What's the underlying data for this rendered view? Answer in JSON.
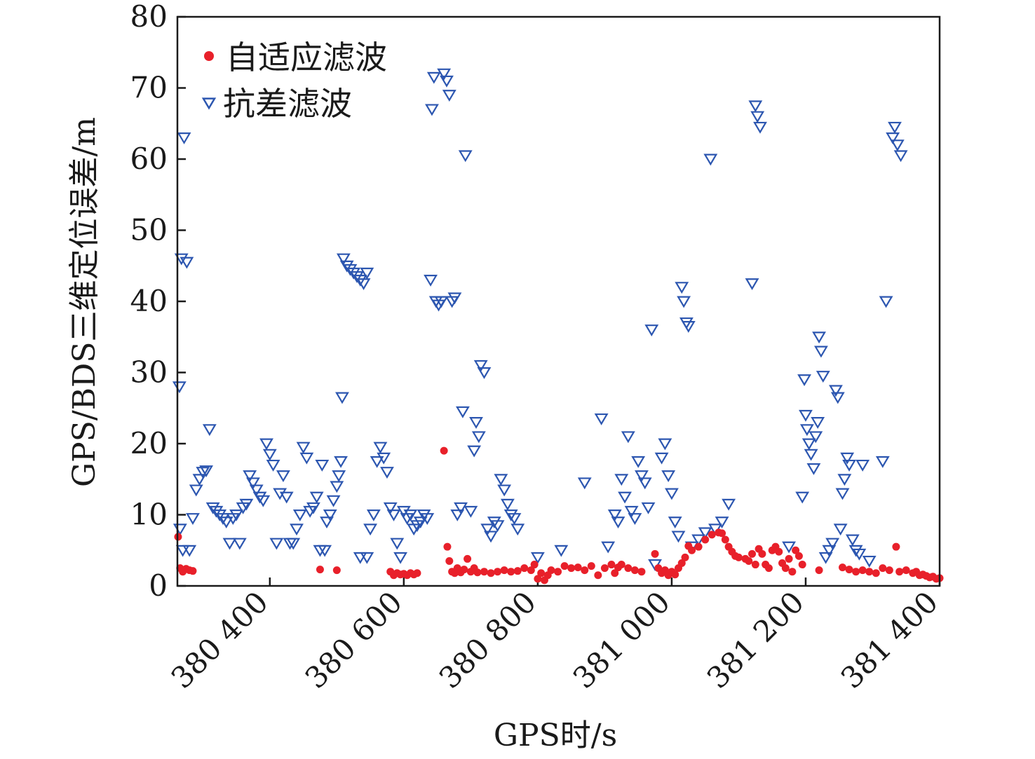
{
  "chart_data": {
    "type": "scatter",
    "title": "",
    "xlabel": "GPS时/s",
    "ylabel": "GPS/BDS三维定位误差/m",
    "xlim": [
      380262,
      381400
    ],
    "ylim": [
      0,
      80
    ],
    "x_ticks": [
      380400,
      380600,
      380800,
      381000,
      381200,
      381400
    ],
    "x_tick_labels": [
      "380 400",
      "380 600",
      "380 800",
      "381 000",
      "381 200",
      "381 400"
    ],
    "y_ticks": [
      0,
      10,
      20,
      30,
      40,
      50,
      60,
      70,
      80
    ],
    "y_tick_labels": [
      "0",
      "10",
      "20",
      "30",
      "40",
      "50",
      "60",
      "70",
      "80"
    ],
    "grid": false,
    "legend_position": "top-left",
    "colors": {
      "adaptive": "#e8202a",
      "robust": "#2c56b0",
      "axis": "#1a1a1a"
    },
    "series": [
      {
        "name": "自适应滤波",
        "marker": "circle",
        "color": "#e8202a",
        "points": [
          [
            380263,
            6.9
          ],
          [
            380266,
            2.5
          ],
          [
            380270,
            2.0
          ],
          [
            380275,
            2.4
          ],
          [
            380280,
            2.2
          ],
          [
            380285,
            2.1
          ],
          [
            380475,
            2.3
          ],
          [
            380500,
            2.2
          ],
          [
            380580,
            2.0
          ],
          [
            380585,
            1.5
          ],
          [
            380590,
            1.8
          ],
          [
            380595,
            1.6
          ],
          [
            380600,
            1.7
          ],
          [
            380605,
            1.5
          ],
          [
            380610,
            1.8
          ],
          [
            380615,
            1.6
          ],
          [
            380620,
            1.8
          ],
          [
            380660,
            19.0
          ],
          [
            380665,
            5.5
          ],
          [
            380668,
            3.5
          ],
          [
            380672,
            2.0
          ],
          [
            380676,
            1.8
          ],
          [
            380680,
            2.5
          ],
          [
            380685,
            1.9
          ],
          [
            380690,
            2.3
          ],
          [
            380695,
            3.8
          ],
          [
            380700,
            2.0
          ],
          [
            380705,
            2.5
          ],
          [
            380710,
            1.9
          ],
          [
            380720,
            2.0
          ],
          [
            380730,
            1.8
          ],
          [
            380740,
            2.0
          ],
          [
            380750,
            2.2
          ],
          [
            380760,
            2.0
          ],
          [
            380770,
            2.1
          ],
          [
            380780,
            2.5
          ],
          [
            380790,
            2.2
          ],
          [
            380795,
            3.0
          ],
          [
            380800,
            1.0
          ],
          [
            380805,
            1.8
          ],
          [
            380810,
            0.8
          ],
          [
            380815,
            1.5
          ],
          [
            380820,
            2.2
          ],
          [
            380830,
            2.0
          ],
          [
            380840,
            2.8
          ],
          [
            380850,
            2.5
          ],
          [
            380860,
            2.6
          ],
          [
            380870,
            2.2
          ],
          [
            380880,
            2.8
          ],
          [
            380890,
            1.5
          ],
          [
            380900,
            2.5
          ],
          [
            380910,
            3.0
          ],
          [
            380915,
            1.8
          ],
          [
            380920,
            2.6
          ],
          [
            380925,
            3.0
          ],
          [
            380935,
            2.5
          ],
          [
            380945,
            2.2
          ],
          [
            380955,
            2.0
          ],
          [
            380975,
            4.5
          ],
          [
            380980,
            2.5
          ],
          [
            380985,
            1.8
          ],
          [
            380990,
            2.2
          ],
          [
            380995,
            1.5
          ],
          [
            381000,
            2.0
          ],
          [
            381005,
            1.6
          ],
          [
            381010,
            2.5
          ],
          [
            381015,
            3.2
          ],
          [
            381020,
            4.0
          ],
          [
            381025,
            5.6
          ],
          [
            381030,
            5.0
          ],
          [
            381040,
            5.5
          ],
          [
            381050,
            6.5
          ],
          [
            381060,
            7.2
          ],
          [
            381070,
            7.5
          ],
          [
            381075,
            7.4
          ],
          [
            381080,
            6.5
          ],
          [
            381085,
            5.5
          ],
          [
            381090,
            4.8
          ],
          [
            381095,
            4.2
          ],
          [
            381100,
            4.0
          ],
          [
            381110,
            3.8
          ],
          [
            381115,
            3.5
          ],
          [
            381120,
            4.5
          ],
          [
            381125,
            3.0
          ],
          [
            381130,
            5.2
          ],
          [
            381135,
            4.5
          ],
          [
            381140,
            3.0
          ],
          [
            381145,
            2.5
          ],
          [
            381150,
            5.0
          ],
          [
            381155,
            5.5
          ],
          [
            381160,
            4.8
          ],
          [
            381165,
            3.2
          ],
          [
            381170,
            2.5
          ],
          [
            381175,
            3.8
          ],
          [
            381180,
            2.0
          ],
          [
            381185,
            5.0
          ],
          [
            381190,
            4.2
          ],
          [
            381195,
            3.0
          ],
          [
            381220,
            2.2
          ],
          [
            381255,
            2.6
          ],
          [
            381265,
            2.3
          ],
          [
            381275,
            2.0
          ],
          [
            381285,
            2.2
          ],
          [
            381295,
            2.0
          ],
          [
            381305,
            1.8
          ],
          [
            381315,
            2.5
          ],
          [
            381325,
            2.2
          ],
          [
            381335,
            5.5
          ],
          [
            381340,
            2.0
          ],
          [
            381350,
            2.2
          ],
          [
            381360,
            1.8
          ],
          [
            381365,
            2.0
          ],
          [
            381370,
            1.5
          ],
          [
            381375,
            1.6
          ],
          [
            381380,
            1.4
          ],
          [
            381385,
            1.2
          ],
          [
            381390,
            1.3
          ],
          [
            381395,
            1.0
          ],
          [
            381400,
            1.1
          ]
        ]
      },
      {
        "name": "抗差滤波",
        "marker": "triangle-down",
        "color": "#2c56b0",
        "points": [
          [
            380265,
            28.0
          ],
          [
            380268,
            46.0
          ],
          [
            380272,
            63.0
          ],
          [
            380276,
            45.5
          ],
          [
            380266,
            8.0
          ],
          [
            380270,
            5.0
          ],
          [
            380280,
            5.0
          ],
          [
            380285,
            9.5
          ],
          [
            380290,
            13.5
          ],
          [
            380295,
            15.0
          ],
          [
            380300,
            16.0
          ],
          [
            380305,
            16.2
          ],
          [
            380310,
            22.0
          ],
          [
            380315,
            11.0
          ],
          [
            380320,
            10.5
          ],
          [
            380325,
            10.0
          ],
          [
            380330,
            9.5
          ],
          [
            380335,
            9.0
          ],
          [
            380340,
            6.0
          ],
          [
            380345,
            9.5
          ],
          [
            380350,
            10.0
          ],
          [
            380355,
            6.0
          ],
          [
            380360,
            11.0
          ],
          [
            380365,
            11.5
          ],
          [
            380370,
            15.5
          ],
          [
            380375,
            14.5
          ],
          [
            380380,
            13.5
          ],
          [
            380385,
            12.5
          ],
          [
            380390,
            12.0
          ],
          [
            380395,
            20.0
          ],
          [
            380400,
            18.5
          ],
          [
            380405,
            17.0
          ],
          [
            380410,
            6.0
          ],
          [
            380415,
            13.0
          ],
          [
            380420,
            15.5
          ],
          [
            380425,
            12.5
          ],
          [
            380430,
            6.0
          ],
          [
            380435,
            6.0
          ],
          [
            380440,
            8.0
          ],
          [
            380445,
            10.0
          ],
          [
            380450,
            19.5
          ],
          [
            380455,
            18.0
          ],
          [
            380460,
            10.5
          ],
          [
            380465,
            11.0
          ],
          [
            380470,
            12.5
          ],
          [
            380475,
            5.0
          ],
          [
            380478,
            17.0
          ],
          [
            380482,
            5.0
          ],
          [
            380485,
            9.0
          ],
          [
            380490,
            10.0
          ],
          [
            380495,
            12.0
          ],
          [
            380500,
            14.0
          ],
          [
            380503,
            15.5
          ],
          [
            380506,
            17.5
          ],
          [
            380508,
            26.5
          ],
          [
            380510,
            46.0
          ],
          [
            380515,
            45.0
          ],
          [
            380520,
            44.5
          ],
          [
            380525,
            44.0
          ],
          [
            380530,
            43.5
          ],
          [
            380535,
            43.0
          ],
          [
            380540,
            42.5
          ],
          [
            380545,
            44.0
          ],
          [
            380535,
            4.0
          ],
          [
            380545,
            4.0
          ],
          [
            380550,
            8.0
          ],
          [
            380555,
            10.0
          ],
          [
            380560,
            17.5
          ],
          [
            380565,
            19.5
          ],
          [
            380570,
            18.0
          ],
          [
            380575,
            16.0
          ],
          [
            380580,
            11.0
          ],
          [
            380585,
            10.0
          ],
          [
            380590,
            6.0
          ],
          [
            380595,
            4.0
          ],
          [
            380600,
            10.5
          ],
          [
            380605,
            9.5
          ],
          [
            380610,
            10.0
          ],
          [
            380615,
            8.0
          ],
          [
            380620,
            8.5
          ],
          [
            380625,
            9.0
          ],
          [
            380630,
            10.0
          ],
          [
            380635,
            9.5
          ],
          [
            380640,
            43.0
          ],
          [
            380642,
            67.0
          ],
          [
            380645,
            71.5
          ],
          [
            380648,
            40.0
          ],
          [
            380652,
            39.5
          ],
          [
            380656,
            40.0
          ],
          [
            380660,
            72.0
          ],
          [
            380664,
            71.0
          ],
          [
            380668,
            69.0
          ],
          [
            380672,
            40.0
          ],
          [
            380676,
            40.5
          ],
          [
            380680,
            10.0
          ],
          [
            380685,
            11.0
          ],
          [
            380688,
            24.5
          ],
          [
            380692,
            60.5
          ],
          [
            380700,
            10.5
          ],
          [
            380705,
            19.0
          ],
          [
            380708,
            23.0
          ],
          [
            380712,
            21.0
          ],
          [
            380715,
            31.0
          ],
          [
            380720,
            30.0
          ],
          [
            380725,
            8.0
          ],
          [
            380730,
            7.0
          ],
          [
            380735,
            9.0
          ],
          [
            380740,
            8.5
          ],
          [
            380745,
            15.0
          ],
          [
            380750,
            13.5
          ],
          [
            380755,
            11.5
          ],
          [
            380760,
            10.0
          ],
          [
            380765,
            9.5
          ],
          [
            380770,
            8.0
          ],
          [
            380800,
            4.0
          ],
          [
            380835,
            5.0
          ],
          [
            380870,
            14.5
          ],
          [
            380895,
            23.5
          ],
          [
            380905,
            5.5
          ],
          [
            380915,
            10.0
          ],
          [
            380920,
            9.0
          ],
          [
            380925,
            15.0
          ],
          [
            380930,
            12.5
          ],
          [
            380935,
            21.0
          ],
          [
            380940,
            10.5
          ],
          [
            380945,
            9.5
          ],
          [
            380950,
            17.5
          ],
          [
            380955,
            15.5
          ],
          [
            380960,
            14.5
          ],
          [
            380965,
            11.0
          ],
          [
            380970,
            36.0
          ],
          [
            380975,
            3.0
          ],
          [
            380985,
            18.0
          ],
          [
            380990,
            20.0
          ],
          [
            380995,
            15.5
          ],
          [
            381000,
            13.0
          ],
          [
            381005,
            9.0
          ],
          [
            381010,
            7.0
          ],
          [
            381015,
            42.0
          ],
          [
            381018,
            40.0
          ],
          [
            381022,
            37.0
          ],
          [
            381025,
            36.5
          ],
          [
            381030,
            5.5
          ],
          [
            381040,
            6.5
          ],
          [
            381050,
            7.5
          ],
          [
            381058,
            60.0
          ],
          [
            381065,
            8.0
          ],
          [
            381075,
            9.0
          ],
          [
            381085,
            11.5
          ],
          [
            381120,
            42.5
          ],
          [
            381125,
            67.5
          ],
          [
            381128,
            66.0
          ],
          [
            381132,
            64.5
          ],
          [
            381175,
            5.5
          ],
          [
            381195,
            12.5
          ],
          [
            381198,
            29.0
          ],
          [
            381200,
            24.0
          ],
          [
            381202,
            22.0
          ],
          [
            381205,
            20.0
          ],
          [
            381208,
            18.5
          ],
          [
            381212,
            16.5
          ],
          [
            381215,
            21.0
          ],
          [
            381218,
            23.0
          ],
          [
            381220,
            35.0
          ],
          [
            381223,
            33.0
          ],
          [
            381226,
            29.5
          ],
          [
            381230,
            4.0
          ],
          [
            381235,
            5.0
          ],
          [
            381240,
            6.0
          ],
          [
            381245,
            27.5
          ],
          [
            381248,
            26.5
          ],
          [
            381252,
            8.0
          ],
          [
            381255,
            13.0
          ],
          [
            381258,
            15.0
          ],
          [
            381262,
            18.0
          ],
          [
            381265,
            17.0
          ],
          [
            381270,
            6.5
          ],
          [
            381275,
            5.0
          ],
          [
            381280,
            4.5
          ],
          [
            381285,
            17.0
          ],
          [
            381295,
            3.5
          ],
          [
            381315,
            17.5
          ],
          [
            381320,
            40.0
          ],
          [
            381330,
            63.0
          ],
          [
            381333,
            64.5
          ],
          [
            381337,
            62.0
          ],
          [
            381342,
            60.5
          ]
        ]
      }
    ]
  }
}
